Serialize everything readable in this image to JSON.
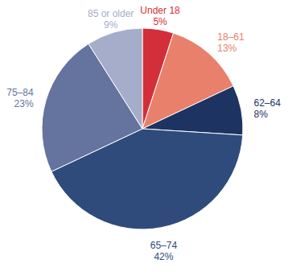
{
  "chart_data": {
    "type": "pie",
    "categories": [
      "Under 18",
      "18–61",
      "62–64",
      "65–74",
      "75–84",
      "85 or older"
    ],
    "values": [
      5,
      13,
      8,
      42,
      23,
      9
    ],
    "value_labels": [
      "5%",
      "13%",
      "8%",
      "42%",
      "23%",
      "9%"
    ],
    "colors": [
      "#d32f3a",
      "#e8806b",
      "#1d3462",
      "#2e4b7b",
      "#64749f",
      "#a6adcb"
    ],
    "data_labels": true
  }
}
